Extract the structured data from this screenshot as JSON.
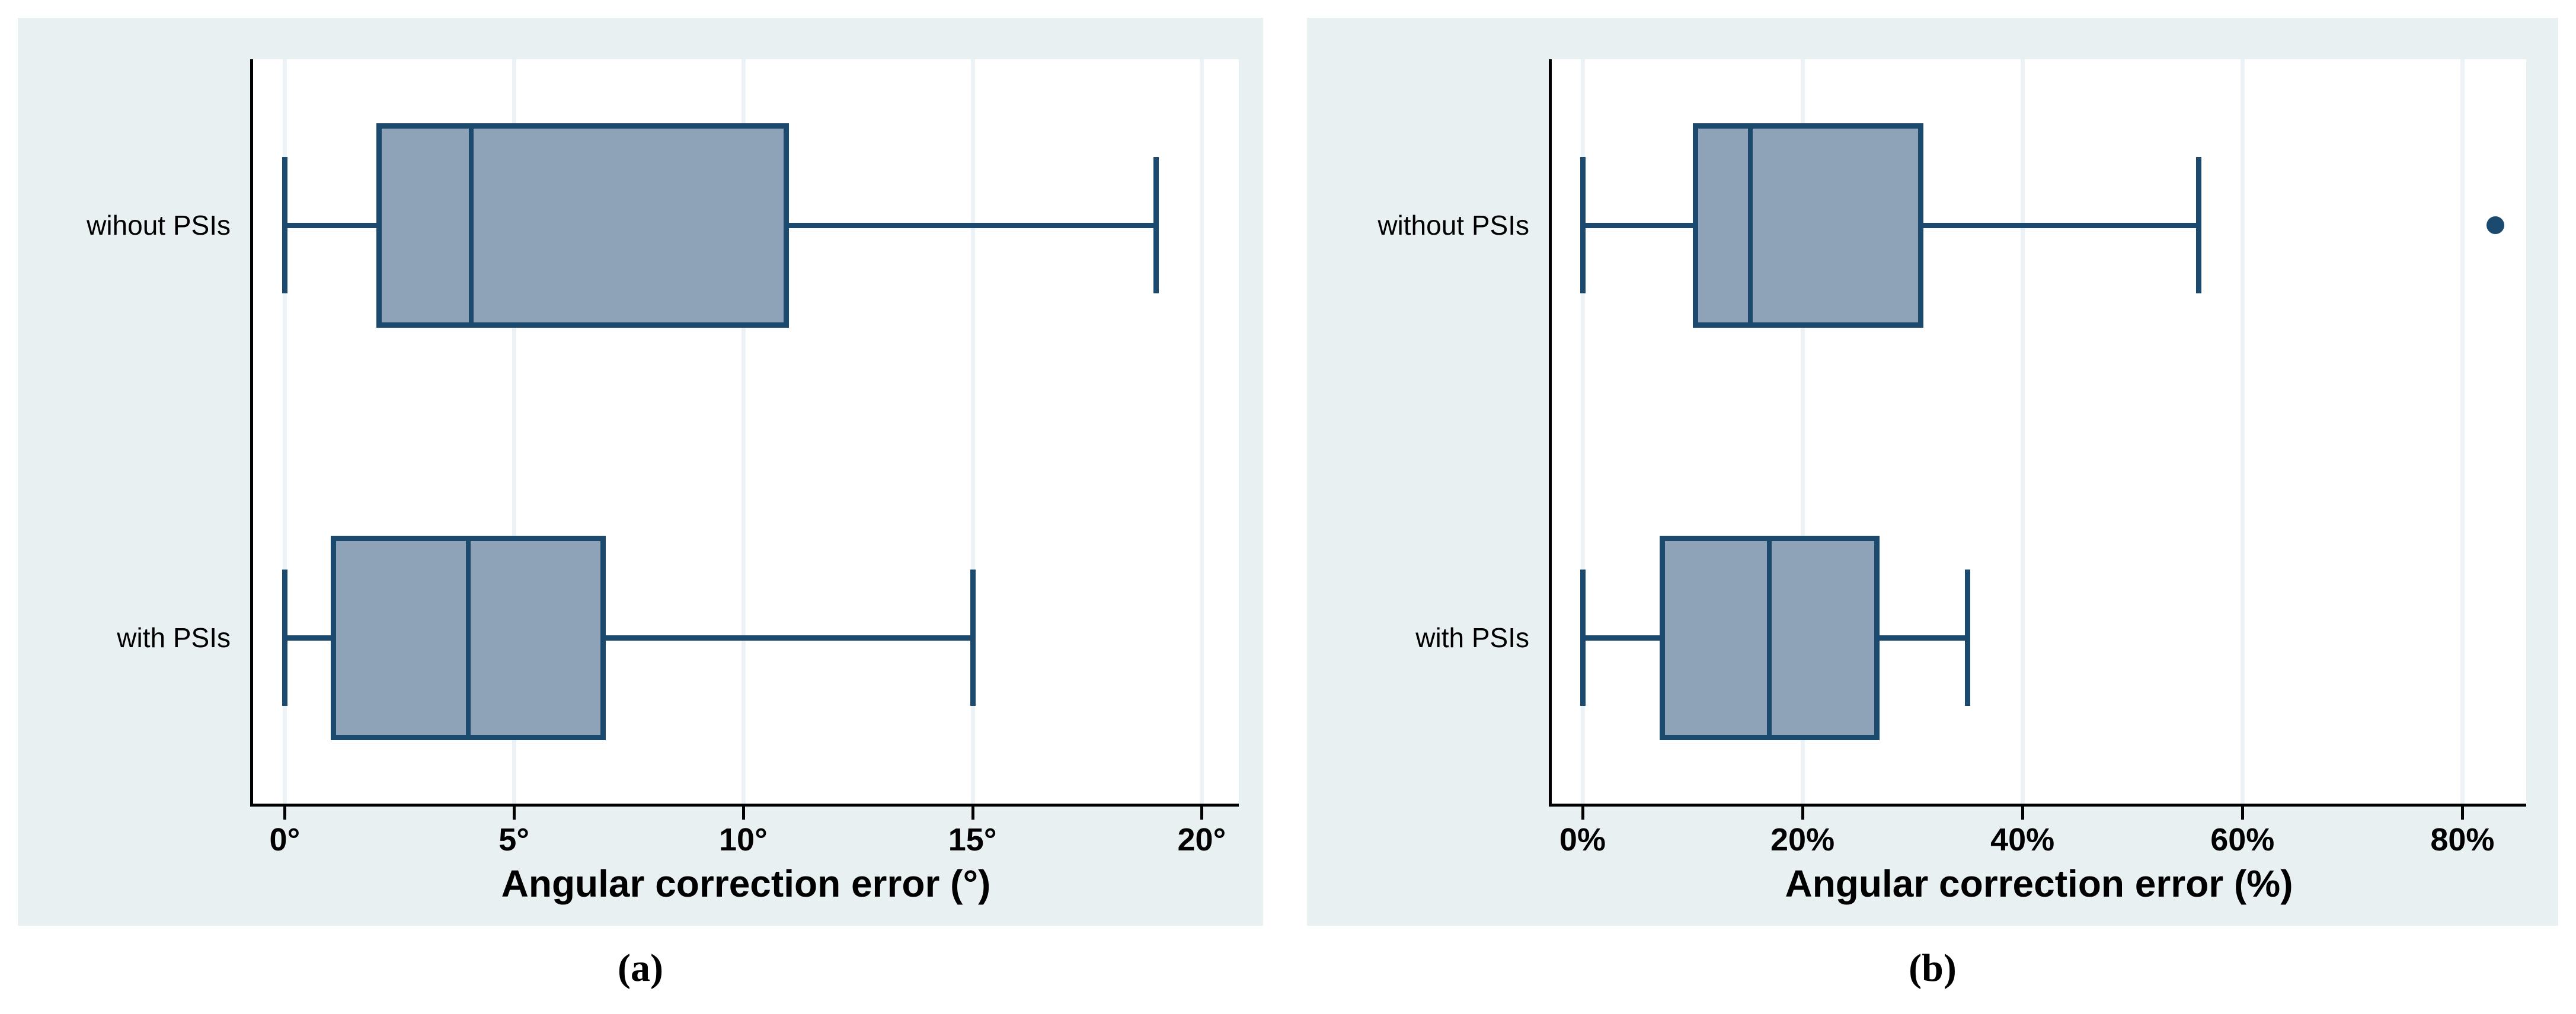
{
  "figure": {
    "caption_a": "(a)",
    "caption_b": "(b)"
  },
  "colors": {
    "panel_background": "#e9f0f2",
    "plot_background": "#ffffff",
    "gridline": "#ecf2f5",
    "axis_line": "#000000",
    "box_fill": "#8fa3b8",
    "box_line": "#1b4a6e",
    "text": "#000000"
  },
  "chart_data": [
    {
      "type": "box",
      "panel": "a",
      "orientation": "horizontal",
      "title": "",
      "xlabel": "Angular correction error (°)",
      "ylabel": "",
      "grid": true,
      "legend": "none",
      "x_range": [
        -0.69,
        20.81
      ],
      "x_ticks": [
        {
          "value": 0,
          "label": "0°"
        },
        {
          "value": 5,
          "label": "5°"
        },
        {
          "value": 10,
          "label": "10°"
        },
        {
          "value": 15,
          "label": "15°"
        },
        {
          "value": 20,
          "label": "20°"
        }
      ],
      "categories": [
        "wihout PSIs",
        "with PSIs"
      ],
      "series": [
        {
          "category": "wihout PSIs",
          "whisker_low": 0,
          "q1": 2,
          "median": 4,
          "q3": 11,
          "whisker_high": 19,
          "outliers": []
        },
        {
          "category": "with PSIs",
          "whisker_low": 0,
          "q1": 1,
          "median": 4,
          "q3": 7,
          "whisker_high": 15,
          "outliers": []
        }
      ]
    },
    {
      "type": "box",
      "panel": "b",
      "orientation": "horizontal",
      "title": "",
      "xlabel": "Angular correction error (%)",
      "ylabel": "",
      "grid": true,
      "legend": "none",
      "x_range": [
        -2.8,
        85.8
      ],
      "x_ticks": [
        {
          "value": 0,
          "label": "0%"
        },
        {
          "value": 20,
          "label": "20%"
        },
        {
          "value": 40,
          "label": "40%"
        },
        {
          "value": 60,
          "label": "60%"
        },
        {
          "value": 80,
          "label": "80%"
        }
      ],
      "categories": [
        "without PSIs",
        "with PSIs"
      ],
      "series": [
        {
          "category": "without PSIs",
          "whisker_low": 0,
          "q1": 10,
          "median": 15,
          "q3": 31,
          "whisker_high": 56,
          "outliers": [
            83
          ]
        },
        {
          "category": "with PSIs",
          "whisker_low": 0,
          "q1": 7,
          "median": 17,
          "q3": 27,
          "whisker_high": 35,
          "outliers": []
        }
      ]
    }
  ]
}
